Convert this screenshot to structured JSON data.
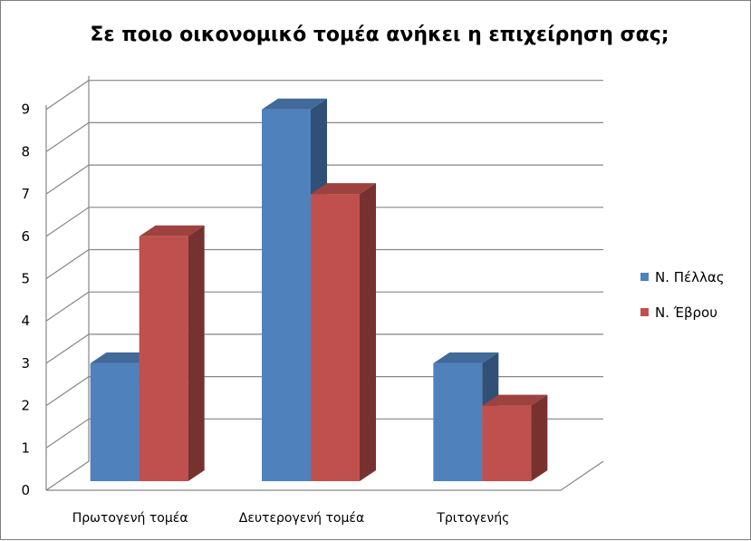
{
  "chart_data": {
    "type": "bar",
    "title": "Σε ποιο οικονομικό τομέα ανήκει η επιχείρηση σας;",
    "xlabel": "",
    "ylabel": "",
    "categories": [
      "Πρωτογενή τομέα",
      "Δευτερογενή τομέα",
      "Τριτογενής"
    ],
    "series": [
      {
        "name": "Ν. Πέλλας",
        "values": [
          3,
          9,
          3
        ],
        "color": "#4f81bd"
      },
      {
        "name": "Ν. Έβρου",
        "values": [
          6,
          7,
          2
        ],
        "color": "#c0504d"
      }
    ],
    "ylim": [
      0,
      9
    ],
    "yticks": [
      0,
      1,
      2,
      3,
      4,
      5,
      6,
      7,
      8,
      9
    ],
    "grid": true,
    "legend": "right",
    "style": "3d-clustered-column"
  }
}
